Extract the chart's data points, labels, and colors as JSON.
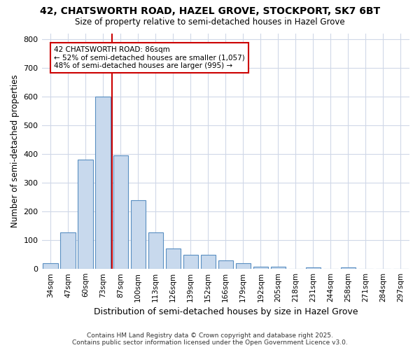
{
  "title1": "42, CHATSWORTH ROAD, HAZEL GROVE, STOCKPORT, SK7 6BT",
  "title2": "Size of property relative to semi-detached houses in Hazel Grove",
  "xlabel": "Distribution of semi-detached houses by size in Hazel Grove",
  "ylabel": "Number of semi-detached properties",
  "bar_labels": [
    "34sqm",
    "47sqm",
    "60sqm",
    "73sqm",
    "87sqm",
    "100sqm",
    "113sqm",
    "126sqm",
    "139sqm",
    "152sqm",
    "166sqm",
    "179sqm",
    "192sqm",
    "205sqm",
    "218sqm",
    "231sqm",
    "244sqm",
    "258sqm",
    "271sqm",
    "284sqm",
    "297sqm"
  ],
  "bar_values": [
    20,
    128,
    380,
    600,
    395,
    238,
    128,
    70,
    48,
    50,
    30,
    20,
    8,
    8,
    0,
    5,
    0,
    5,
    0,
    0,
    0
  ],
  "bar_color": "#c8d9ed",
  "bar_edge_color": "#5a8fc2",
  "vline_x": 3.5,
  "vline_color": "#cc0000",
  "annotation_title": "42 CHATSWORTH ROAD: 86sqm",
  "annotation_line1": "← 52% of semi-detached houses are smaller (1,057)",
  "annotation_line2": "48% of semi-detached houses are larger (995) →",
  "annotation_box_color": "#cc0000",
  "ylim": [
    0,
    820
  ],
  "yticks": [
    0,
    100,
    200,
    300,
    400,
    500,
    600,
    700,
    800
  ],
  "footer1": "Contains HM Land Registry data © Crown copyright and database right 2025.",
  "footer2": "Contains public sector information licensed under the Open Government Licence v3.0.",
  "bg_color": "#ffffff",
  "grid_color": "#d0d8e8"
}
